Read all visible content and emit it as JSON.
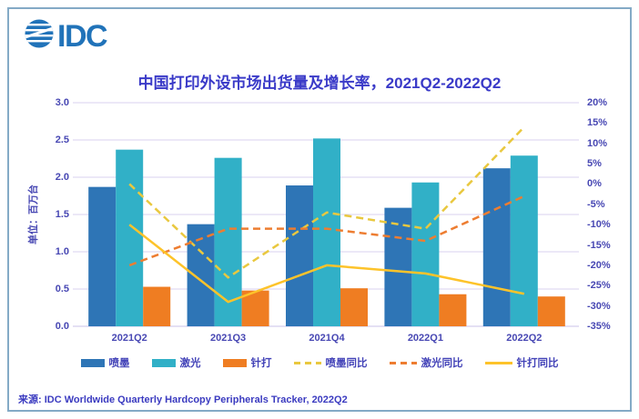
{
  "logo": {
    "text": "IDC",
    "color": "#2173b9"
  },
  "title": "中国打印外设市场出货量及增长率，2021Q2-2022Q2",
  "source": "来源:  IDC Worldwide Quarterly Hardcopy Peripherals Tracker, 2022Q2",
  "chart_data": {
    "type": "combo-bar-line",
    "title": "中国打印外设市场出货量及增长率，2021Q2-2022Q2",
    "categories": [
      "2021Q2",
      "2021Q3",
      "2021Q4",
      "2022Q1",
      "2022Q2"
    ],
    "bar_series": [
      {
        "id": "inkjet",
        "name": "喷墨",
        "color": "#2e75b6",
        "values": [
          1.87,
          1.37,
          1.89,
          1.59,
          2.12
        ]
      },
      {
        "id": "laser",
        "name": "激光",
        "color": "#31b0c7",
        "values": [
          2.37,
          2.26,
          2.52,
          1.93,
          2.29
        ]
      },
      {
        "id": "dot-matrix",
        "name": "针打",
        "color": "#ef7d22",
        "values": [
          0.53,
          0.48,
          0.51,
          0.43,
          0.4
        ]
      }
    ],
    "line_series": [
      {
        "id": "inkjet-yoy",
        "name": "喷墨同比",
        "color": "#e9c83f",
        "dashed": true,
        "values": [
          0,
          -23,
          -7,
          -11,
          14
        ]
      },
      {
        "id": "laser-yoy",
        "name": "激光同比",
        "color": "#ed7d31",
        "dashed": true,
        "values": [
          -20,
          -11,
          -11,
          -14,
          -3
        ]
      },
      {
        "id": "dot-matrix-yoy",
        "name": "针打同比",
        "color": "#fdc32a",
        "dashed": false,
        "values": [
          -10,
          -29,
          -20,
          -22,
          -27
        ]
      }
    ],
    "left_axis": {
      "label": "单位：百万台",
      "min": 0,
      "max": 3,
      "step": 0.5,
      "ticks": [
        "3.0",
        "2.5",
        "2.0",
        "1.5",
        "1.0",
        "0.5",
        "0.0"
      ]
    },
    "right_axis": {
      "min": -35,
      "max": 20,
      "step": 5,
      "ticks": [
        "20%",
        "15%",
        "10%",
        "5%",
        "0%",
        "-5%",
        "-10%",
        "-15%",
        "-20%",
        "-25%",
        "-30%",
        "-35%"
      ]
    },
    "grid": true,
    "gridline_color": "#d9d2ef",
    "legend_position": "bottom"
  }
}
